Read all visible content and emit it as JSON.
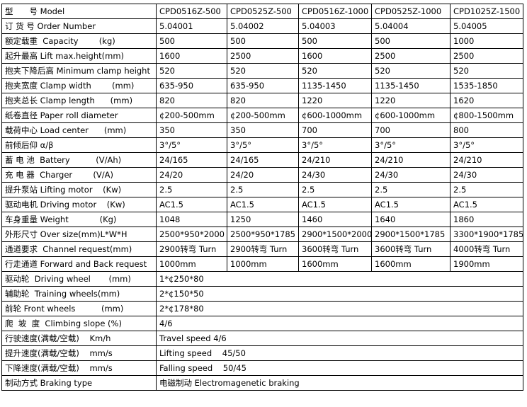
{
  "table": {
    "rows": [
      [
        "型　　号 Model",
        "CPD0516Z-500",
        "CPD0525Z-500",
        "CPD0516Z-1000",
        "CPD0525Z-1000",
        "CPD1025Z-1500"
      ],
      [
        "订 货 号 Order Number",
        "5.04001",
        "5.04002",
        "5.04003",
        "5.04004",
        "5.04005"
      ],
      [
        "额定载重  Capacity        (kg)",
        "500",
        "500",
        "500",
        "500",
        "1000"
      ],
      [
        "起升最高 Lift max.height(mm)",
        "1600",
        "2500",
        "1600",
        "2500",
        "2500"
      ],
      [
        "抱夹下降后高 Minimum clamp height",
        "520",
        "520",
        "520",
        "520",
        "520"
      ],
      [
        "抱夹宽度 Clamp width        (mm)",
        "635-950",
        "635-950",
        "1135-1450",
        "1135-1450",
        "1535-1850"
      ],
      [
        "抱夹总长 Clamp length      (mm)",
        "820",
        "820",
        "1220",
        "1220",
        "1620"
      ],
      [
        "纸卷直径 Paper roll diameter",
        "¢200-500mm",
        "¢200-500mm",
        "¢600-1000mm",
        "¢600-1000mm",
        "¢800-1500mm"
      ],
      [
        "载荷中心 Load center      (mm)",
        "350",
        "350",
        "700",
        "700",
        "800"
      ],
      [
        "前倾后仰 α/β",
        "3°/5°",
        "3°/5°",
        "3°/5°",
        "3°/5°",
        "3°/5°"
      ],
      [
        "蓄 电 池  Battery          (V/Ah)",
        "24/165",
        "24/165",
        "24/210",
        "24/210",
        "24/210"
      ],
      [
        "充 电 器  Charger        (V/A)",
        "24/20",
        "24/20",
        "24/30",
        "24/30",
        "24/30"
      ],
      [
        "提升泵站 Lifting motor    (Kw)",
        "2.5",
        "2.5",
        "2.5",
        "2.5",
        "2.5"
      ],
      [
        "驱动电机 Driving motor    (Kw)",
        "AC1.5",
        "AC1.5",
        "AC1.5",
        "AC1.5",
        "AC1.5"
      ],
      [
        "车身重量 Weight            (Kg)",
        "1048",
        "1250",
        "1460",
        "1640",
        "1860"
      ],
      [
        "外形尺寸 Over size(mm)L*W*H",
        "2500*950*2000",
        "2500*950*1785",
        "2900*1500*2000",
        "2900*1500*1785",
        "3300*1900*1785"
      ],
      [
        "通道要求  Channel request(mm)",
        "2900转弯 Turn",
        "2900转弯 Turn",
        "3600转弯 Turn",
        "3600转弯 Turn",
        "4000转弯 Turn"
      ],
      [
        "行走通道 Forward and Back request",
        "1000mm",
        "1000mm",
        "1600mm",
        "1600mm",
        "1900mm"
      ],
      [
        "驱动轮  Driving wheel       (mm)",
        "1*¢250*80"
      ],
      [
        "辅助轮  Training wheels(mm)",
        "2*¢150*50"
      ],
      [
        "前轮 Front wheels          (mm)",
        "2*¢178*80"
      ],
      [
        "爬  坡  度  Climbing slope (%)",
        "4/6"
      ],
      [
        "行驶速度(满载/空载)    Km/h",
        "Travel speed 4/6"
      ],
      [
        "提升速度(满载/空载)    mm/s",
        "Lifting speed    45/50"
      ],
      [
        "下降速度(满载/空载)    mm/s",
        "Falling speed    50/45"
      ],
      [
        "制动方式 Braking type",
        "电磁制动 Electromagenetic braking"
      ]
    ]
  }
}
